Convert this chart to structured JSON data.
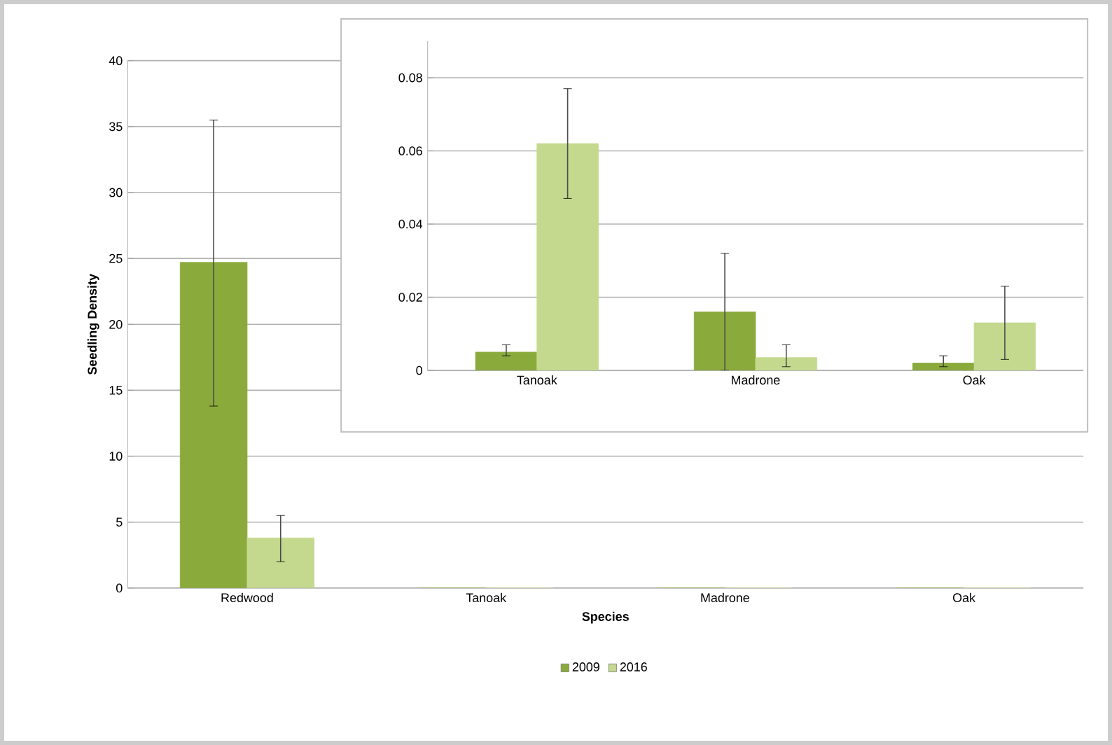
{
  "chart_data": [
    {
      "type": "bar",
      "xlabel": "Species",
      "ylabel": "Seedling Density",
      "categories": [
        "Redwood",
        "Tanoak",
        "Madrone",
        "Oak"
      ],
      "series": [
        {
          "name": "2009",
          "color": "#8aaa3c",
          "values": [
            24.7,
            0,
            0,
            0
          ],
          "errors": [
            [
              13.8,
              35.5
            ],
            null,
            null,
            null
          ]
        },
        {
          "name": "2016",
          "color": "#c4d98e",
          "values": [
            3.8,
            0,
            0,
            0
          ],
          "errors": [
            [
              2,
              5.5
            ],
            null,
            null,
            null
          ]
        }
      ],
      "ylim": [
        0,
        40
      ],
      "yticks": [
        0,
        5,
        10,
        15,
        20,
        25,
        30,
        35,
        40
      ],
      "grid": "y",
      "legend": "bottom"
    },
    {
      "type": "bar",
      "categories": [
        "Tanoak",
        "Madrone",
        "Oak"
      ],
      "series": [
        {
          "color": "#8aaa3c",
          "values": [
            0.005,
            0.016,
            0.002
          ],
          "errors": [
            [
              0.004,
              0.007
            ],
            [
              0,
              0.032
            ],
            [
              0.001,
              0.004
            ]
          ]
        },
        {
          "color": "#c4d98e",
          "values": [
            0.062,
            0.0035,
            0.013
          ],
          "errors": [
            [
              0.047,
              0.077
            ],
            [
              0.001,
              0.007
            ],
            [
              0.003,
              0.023
            ]
          ]
        }
      ],
      "ylim": [
        0,
        0.09
      ],
      "yticks": [
        0,
        0.02,
        0.04,
        0.06,
        0.08
      ],
      "grid": "y"
    }
  ]
}
